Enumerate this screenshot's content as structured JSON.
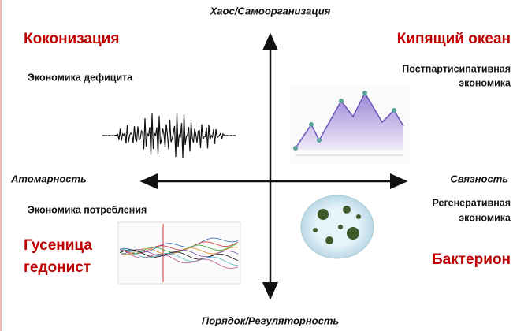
{
  "axes": {
    "top": "Хаос/Самоорганизация",
    "bottom": "Порядок/Регуляторность",
    "left": "Атомарность",
    "right": "Связность"
  },
  "quadrants": [
    {
      "title": "Коконизация",
      "subtitle": [
        "Экономика дефицита"
      ]
    },
    {
      "title": "Кипящий океан",
      "subtitle": [
        "Постпартисипативная",
        "экономика"
      ]
    },
    {
      "title": "Бактерион",
      "subtitle": [
        "Регенеративная",
        "экономика"
      ]
    },
    {
      "title": [
        "Гусеница",
        "гедонист"
      ],
      "subtitle": [
        "Экономика  потребления"
      ]
    }
  ]
}
